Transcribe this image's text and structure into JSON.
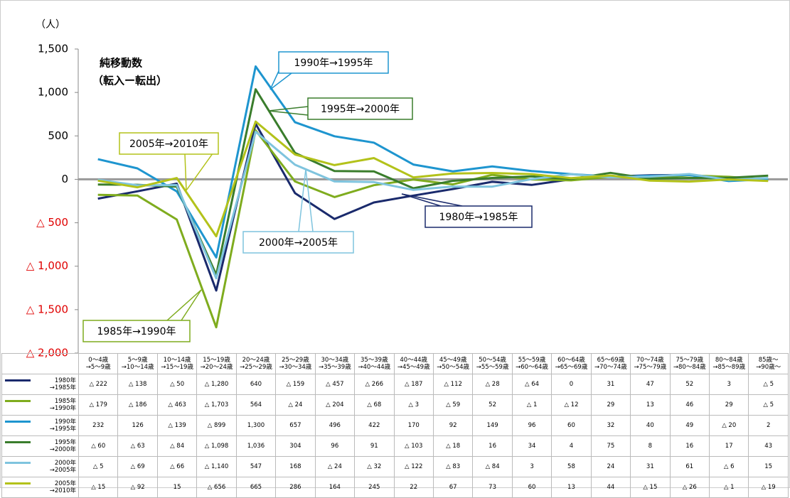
{
  "chart_data": {
    "type": "line",
    "title": "純移動数",
    "subtitle": "（転入ー転出）",
    "y_unit": "（人）",
    "categories": [
      "0～4歳\n→5～9歳",
      "5～9歳\n→10～14歳",
      "10～14歳\n→15～19歳",
      "15～19歳\n→20～24歳",
      "20～24歳\n→25～29歳",
      "25～29歳\n→30～34歳",
      "30～34歳\n→35～39歳",
      "35～39歳\n→40～44歳",
      "40～44歳\n→45～49歳",
      "45～49歳\n→50～54歳",
      "50～54歳\n→55～59歳",
      "55～59歳\n→60～64歳",
      "60～64歳\n→65～69歳",
      "65～69歳\n→70～74歳",
      "70～74歳\n→75～79歳",
      "75～79歳\n→80～84歳",
      "80～84歳\n→85～89歳",
      "85歳～\n→90歳～"
    ],
    "table_row_labels": [
      "1980年\n→1985年",
      "1985年\n→1990年",
      "1990年\n→1995年",
      "1995年\n→2000年",
      "2000年\n→2005年",
      "2005年\n→2010年"
    ],
    "series": [
      {
        "name": "1980年→1985年",
        "color": "#1a2a6c",
        "values": [
          -222,
          -138,
          -50,
          -1280,
          640,
          -159,
          -457,
          -266,
          -187,
          -112,
          -28,
          -64,
          0,
          31,
          47,
          52,
          3,
          -5
        ],
        "value_labels": [
          "△ 222",
          "△ 138",
          "△ 50",
          "△ 1,280",
          "640",
          "△ 159",
          "△ 457",
          "△ 266",
          "△ 187",
          "△ 112",
          "△ 28",
          "△ 64",
          "0",
          "31",
          "47",
          "52",
          "3",
          "△ 5"
        ]
      },
      {
        "name": "1985年→1990年",
        "color": "#7fac1e",
        "values": [
          -179,
          -186,
          -463,
          -1703,
          564,
          -24,
          -204,
          -68,
          -3,
          -59,
          52,
          -1,
          -12,
          29,
          13,
          46,
          29,
          -5
        ],
        "value_labels": [
          "△ 179",
          "△ 186",
          "△ 463",
          "△ 1,703",
          "564",
          "△ 24",
          "△ 204",
          "△ 68",
          "△ 3",
          "△ 59",
          "52",
          "△ 1",
          "△ 12",
          "29",
          "13",
          "46",
          "29",
          "△ 5"
        ]
      },
      {
        "name": "1990年→1995年",
        "color": "#1e95cf",
        "values": [
          232,
          126,
          -139,
          -899,
          1300,
          657,
          496,
          422,
          170,
          92,
          149,
          96,
          60,
          32,
          40,
          49,
          -20,
          2
        ],
        "value_labels": [
          "232",
          "126",
          "△ 139",
          "△ 899",
          "1,300",
          "657",
          "496",
          "422",
          "170",
          "92",
          "149",
          "96",
          "60",
          "32",
          "40",
          "49",
          "△ 20",
          "2"
        ]
      },
      {
        "name": "1995年→2000年",
        "color": "#3a7d2c",
        "values": [
          -60,
          -63,
          -84,
          -1098,
          1036,
          304,
          96,
          91,
          -103,
          -18,
          16,
          34,
          4,
          75,
          8,
          16,
          17,
          43
        ],
        "value_labels": [
          "△ 60",
          "△ 63",
          "△ 84",
          "△ 1,098",
          "1,036",
          "304",
          "96",
          "91",
          "△ 103",
          "△ 18",
          "16",
          "34",
          "4",
          "75",
          "8",
          "16",
          "17",
          "43"
        ]
      },
      {
        "name": "2000年→2005年",
        "color": "#7fc4de",
        "values": [
          -5,
          -69,
          -66,
          -1140,
          547,
          168,
          -24,
          -32,
          -122,
          -83,
          -84,
          3,
          58,
          24,
          31,
          61,
          -6,
          15
        ],
        "value_labels": [
          "△ 5",
          "△ 69",
          "△ 66",
          "△ 1,140",
          "547",
          "168",
          "△ 24",
          "△ 32",
          "△ 122",
          "△ 83",
          "△ 84",
          "3",
          "58",
          "24",
          "31",
          "61",
          "△ 6",
          "15"
        ]
      },
      {
        "name": "2005年→2010年",
        "color": "#b3c21a",
        "values": [
          -15,
          -92,
          15,
          -656,
          665,
          286,
          164,
          245,
          22,
          67,
          73,
          60,
          13,
          44,
          -15,
          -26,
          -1,
          -19
        ],
        "value_labels": [
          "△ 15",
          "△ 92",
          "15",
          "△ 656",
          "665",
          "286",
          "164",
          "245",
          "22",
          "67",
          "73",
          "60",
          "13",
          "44",
          "△ 15",
          "△ 26",
          "△ 1",
          "△ 19"
        ]
      }
    ],
    "ylim": [
      -2000,
      1500
    ],
    "yticks": [
      {
        "value": 1500,
        "label": "1,500"
      },
      {
        "value": 1000,
        "label": "1,000"
      },
      500,
      0,
      {
        "value": -500,
        "label": "△ 500"
      },
      {
        "value": -1000,
        "label": "△ 1,000"
      },
      {
        "value": -1500,
        "label": "△ 1,500"
      },
      {
        "value": -2000,
        "label": "△ 2,000"
      }
    ],
    "negative_tick_color": "#e00000"
  }
}
